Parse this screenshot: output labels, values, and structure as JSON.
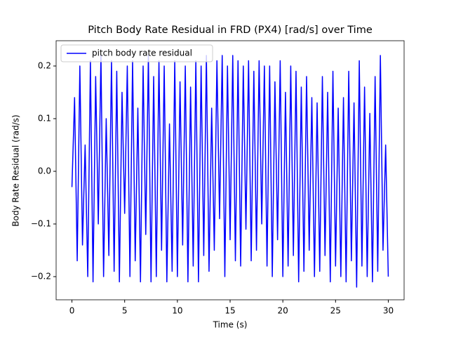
{
  "chart_data": {
    "type": "line",
    "title": "Pitch Body Rate Residual in FRD (PX4) [rad/s] over Time",
    "x_label": "Time (s)",
    "y_label": "Body Rate Residual (rad/s)",
    "x": [
      0,
      0.25,
      0.5,
      0.75,
      1,
      1.25,
      1.5,
      1.75,
      2,
      2.25,
      2.5,
      2.75,
      3,
      3.25,
      3.5,
      3.75,
      4,
      4.25,
      4.5,
      4.75,
      5,
      5.25,
      5.5,
      5.75,
      6,
      6.25,
      6.5,
      6.75,
      7,
      7.25,
      7.5,
      7.75,
      8,
      8.25,
      8.5,
      8.75,
      9,
      9.25,
      9.5,
      9.75,
      10,
      10.25,
      10.5,
      10.75,
      11,
      11.25,
      11.5,
      11.75,
      12,
      12.25,
      12.5,
      12.75,
      13,
      13.25,
      13.5,
      13.75,
      14,
      14.25,
      14.5,
      14.75,
      15,
      15.25,
      15.5,
      15.75,
      16,
      16.25,
      16.5,
      16.75,
      17,
      17.25,
      17.5,
      17.75,
      18,
      18.25,
      18.5,
      18.75,
      19,
      19.25,
      19.5,
      19.75,
      20,
      20.25,
      20.5,
      20.75,
      21,
      21.25,
      21.5,
      21.75,
      22,
      22.25,
      22.5,
      22.75,
      23,
      23.25,
      23.5,
      23.75,
      24,
      24.25,
      24.5,
      24.75,
      25,
      25.25,
      25.5,
      25.75,
      26,
      26.25,
      26.5,
      26.75,
      27,
      27.25,
      27.5,
      27.75,
      28,
      28.25,
      28.5,
      28.75,
      29,
      29.25,
      29.5,
      29.75,
      30
    ],
    "series": [
      {
        "name": "pitch body rate residual",
        "color": "#0000ff",
        "values": [
          -0.03,
          0.14,
          -0.17,
          0.2,
          -0.14,
          0.05,
          -0.2,
          0.21,
          -0.21,
          0.18,
          -0.1,
          0.22,
          -0.2,
          0.1,
          -0.16,
          0.21,
          -0.19,
          0.19,
          -0.21,
          0.15,
          -0.08,
          0.2,
          -0.2,
          0.21,
          -0.17,
          0.12,
          -0.21,
          0.2,
          -0.12,
          0.22,
          -0.21,
          0.18,
          -0.2,
          0.21,
          -0.15,
          0.2,
          -0.21,
          0.09,
          -0.19,
          0.21,
          -0.2,
          0.17,
          -0.14,
          0.2,
          -0.21,
          0.16,
          -0.18,
          0.21,
          -0.21,
          0.2,
          -0.16,
          0.22,
          -0.19,
          0.12,
          -0.15,
          0.21,
          -0.09,
          0.22,
          -0.2,
          0.2,
          -0.13,
          0.22,
          -0.17,
          0.21,
          -0.18,
          0.2,
          -0.11,
          0.21,
          -0.17,
          0.19,
          -0.15,
          0.21,
          -0.1,
          0.2,
          -0.18,
          0.2,
          -0.2,
          0.17,
          -0.13,
          0.21,
          -0.2,
          0.15,
          -0.18,
          0.2,
          -0.16,
          0.19,
          -0.21,
          0.16,
          -0.19,
          0.18,
          -0.15,
          0.14,
          -0.2,
          0.13,
          -0.19,
          0.18,
          -0.16,
          0.15,
          -0.21,
          0.19,
          -0.18,
          0.12,
          -0.2,
          0.14,
          -0.21,
          0.19,
          -0.17,
          0.13,
          -0.22,
          0.21,
          -0.18,
          0.16,
          -0.2,
          0.11,
          -0.21,
          0.18,
          -0.19,
          0.22,
          -0.15,
          0.05,
          -0.2
        ]
      }
    ],
    "xlim": [
      -1.5,
      31.5
    ],
    "xticks": [
      0,
      5,
      10,
      15,
      20,
      25,
      30
    ],
    "ylim": [
      -0.244,
      0.248
    ],
    "yticks": [
      {
        "value": -0.2,
        "label": "−0.2"
      },
      {
        "value": -0.1,
        "label": "−0.1"
      },
      {
        "value": 0,
        "label": "0.0"
      },
      {
        "value": 0.1,
        "label": "0.1"
      },
      {
        "value": 0.2,
        "label": "0.2"
      }
    ],
    "legend": "upper left"
  }
}
